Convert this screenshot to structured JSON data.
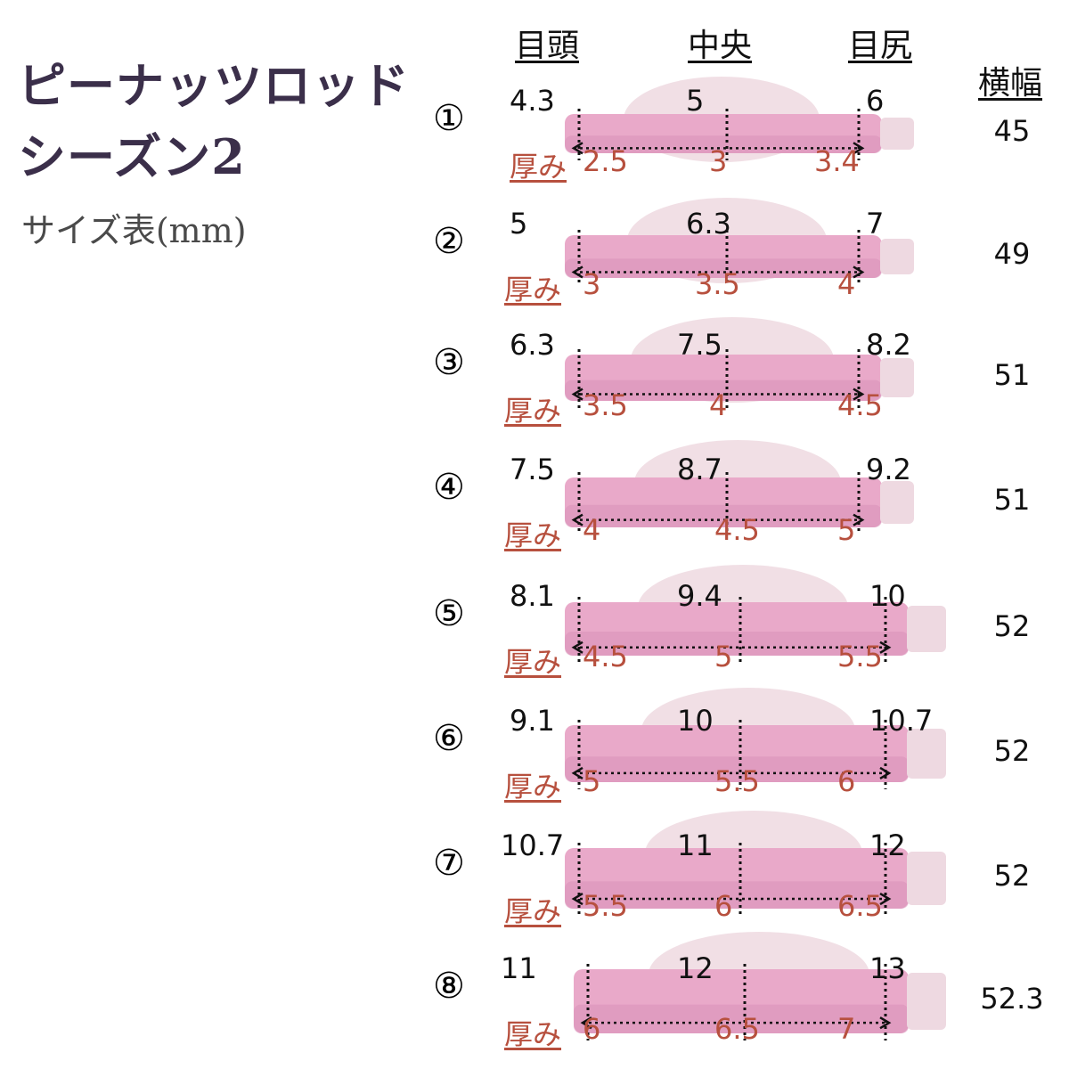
{
  "title": {
    "line1": "ピーナッツロッド",
    "line2": "シーズン2",
    "subtitle": "サイズ表(mm)"
  },
  "headers": {
    "inner": "目頭",
    "center": "中央",
    "outer": "目尻",
    "width": "横幅"
  },
  "thickness_label": "厚み",
  "rod_colors": {
    "body": "#e9a9c9",
    "body_dark": "#d890b8",
    "tab": "#eed9e1"
  },
  "rows": [
    {
      "label": "①",
      "inner": "4.3",
      "center": "5",
      "outer": "6",
      "t_inner": "2.5",
      "t_center": "3",
      "t_outer": "3.4",
      "width": "45"
    },
    {
      "label": "②",
      "inner": "5",
      "center": "6.3",
      "outer": "7",
      "t_inner": "3",
      "t_center": "3.5",
      "t_outer": "4",
      "width": "49"
    },
    {
      "label": "③",
      "inner": "6.3",
      "center": "7.5",
      "outer": "8.2",
      "t_inner": "3.5",
      "t_center": "4",
      "t_outer": "4.5",
      "width": "51"
    },
    {
      "label": "④",
      "inner": "7.5",
      "center": "8.7",
      "outer": "9.2",
      "t_inner": "4",
      "t_center": "4.5",
      "t_outer": "5",
      "width": "51"
    },
    {
      "label": "⑤",
      "inner": "8.1",
      "center": "9.4",
      "outer": "10",
      "t_inner": "4.5",
      "t_center": "5",
      "t_outer": "5.5",
      "width": "52"
    },
    {
      "label": "⑥",
      "inner": "9.1",
      "center": "10",
      "outer": "10.7",
      "t_inner": "5",
      "t_center": "5.5",
      "t_outer": "6",
      "width": "52"
    },
    {
      "label": "⑦",
      "inner": "10.7",
      "center": "11",
      "outer": "12",
      "t_inner": "5.5",
      "t_center": "6",
      "t_outer": "6.5",
      "width": "52"
    },
    {
      "label": "⑧",
      "inner": "11",
      "center": "12",
      "outer": "13",
      "t_inner": "6",
      "t_center": "6.5",
      "t_outer": "7",
      "width": "52.3"
    }
  ]
}
